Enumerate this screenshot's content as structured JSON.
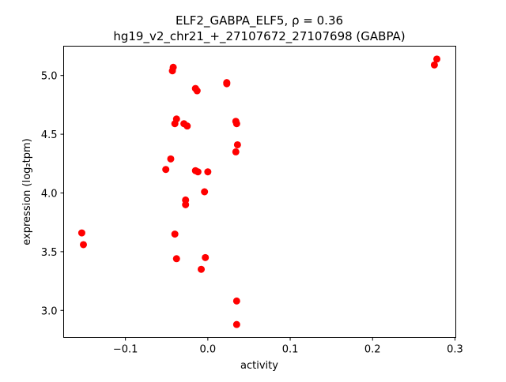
{
  "chart_data": {
    "type": "scatter",
    "title_line1": "ELF2_GABPA_ELF5, ρ = 0.36",
    "title_line2": "hg19_v2_chr21_+_27107672_27107698 (GABPA)",
    "xlabel": "activity",
    "ylabel": "expression (log₂tpm)",
    "xlim": [
      -0.175,
      0.301
    ],
    "ylim": [
      2.77,
      5.25
    ],
    "xticks": [
      {
        "v": -0.1,
        "label": "−0.1"
      },
      {
        "v": 0.0,
        "label": "0.0"
      },
      {
        "v": 0.1,
        "label": "0.1"
      },
      {
        "v": 0.2,
        "label": "0.2"
      },
      {
        "v": 0.3,
        "label": "0.3"
      }
    ],
    "yticks": [
      {
        "v": 3.0,
        "label": "3.0"
      },
      {
        "v": 3.5,
        "label": "3.5"
      },
      {
        "v": 4.0,
        "label": "4.0"
      },
      {
        "v": 4.5,
        "label": "4.5"
      },
      {
        "v": 5.0,
        "label": "5.0"
      }
    ],
    "grid": false,
    "color": "#ff0000",
    "points": [
      [
        -0.153,
        3.66
      ],
      [
        -0.151,
        3.56
      ],
      [
        -0.043,
        5.04
      ],
      [
        -0.042,
        5.07
      ],
      [
        -0.015,
        4.89
      ],
      [
        -0.013,
        4.87
      ],
      [
        0.023,
        4.94
      ],
      [
        0.023,
        4.93
      ],
      [
        -0.038,
        4.63
      ],
      [
        -0.04,
        4.59
      ],
      [
        -0.029,
        4.59
      ],
      [
        -0.025,
        4.57
      ],
      [
        0.034,
        4.61
      ],
      [
        0.035,
        4.59
      ],
      [
        -0.045,
        4.29
      ],
      [
        -0.051,
        4.2
      ],
      [
        -0.015,
        4.19
      ],
      [
        -0.012,
        4.18
      ],
      [
        0.0,
        4.18
      ],
      [
        0.036,
        4.41
      ],
      [
        0.034,
        4.35
      ],
      [
        -0.027,
        3.94
      ],
      [
        -0.027,
        3.9
      ],
      [
        -0.004,
        4.01
      ],
      [
        -0.04,
        3.65
      ],
      [
        -0.038,
        3.44
      ],
      [
        -0.003,
        3.45
      ],
      [
        -0.008,
        3.35
      ],
      [
        0.035,
        3.08
      ],
      [
        0.035,
        2.88
      ],
      [
        0.275,
        5.09
      ],
      [
        0.278,
        5.14
      ]
    ]
  }
}
